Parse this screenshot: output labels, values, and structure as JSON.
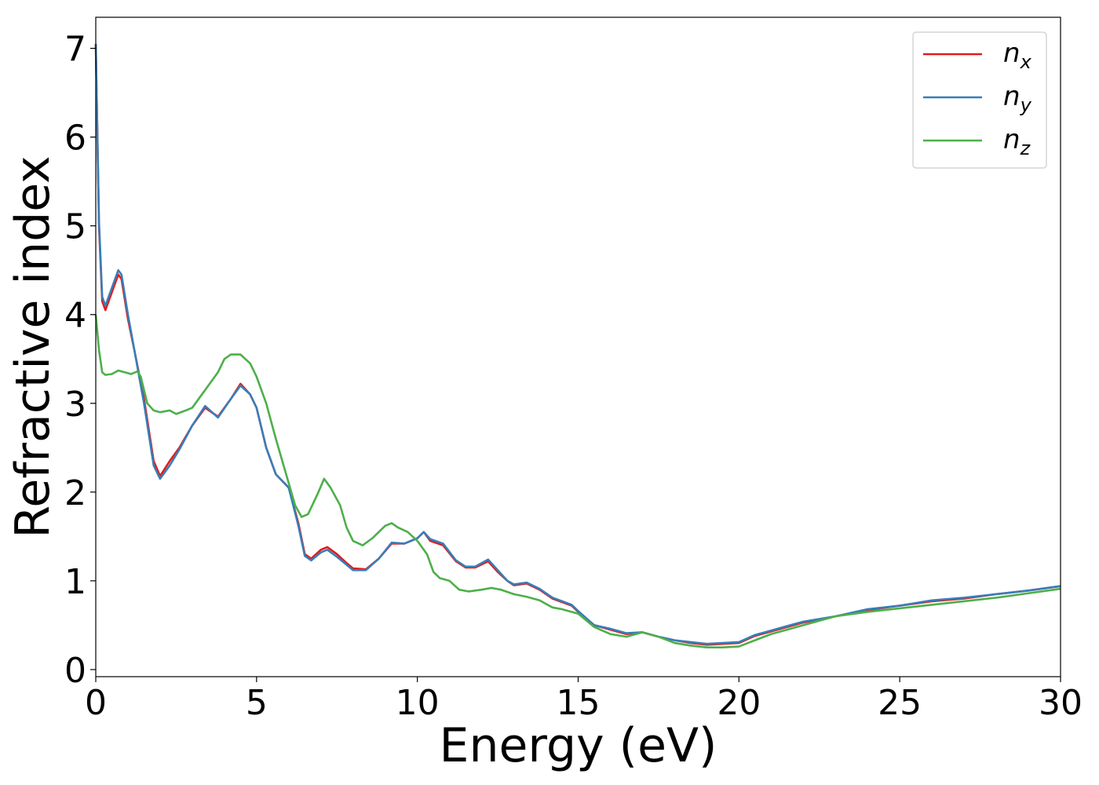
{
  "chart_data": {
    "type": "line",
    "xlabel": "Energy (eV)",
    "ylabel": "Refractive index",
    "xlim": [
      0,
      30
    ],
    "ylim": [
      -0.08,
      7.35
    ],
    "xticks": [
      0,
      5,
      10,
      15,
      20,
      25,
      30
    ],
    "yticks": [
      0,
      1,
      2,
      3,
      4,
      5,
      6,
      7
    ],
    "grid": false,
    "legend_position": "top-right",
    "series": [
      {
        "name": "n",
        "subscript": "x",
        "color": "#e41a1c",
        "x": [
          0,
          0.1,
          0.2,
          0.3,
          0.5,
          0.7,
          0.8,
          1.0,
          1.2,
          1.5,
          1.8,
          2.0,
          2.3,
          2.6,
          3.0,
          3.4,
          3.8,
          4.2,
          4.5,
          4.8,
          5.0,
          5.3,
          5.6,
          6.0,
          6.3,
          6.5,
          6.7,
          7.0,
          7.2,
          7.5,
          7.8,
          8.0,
          8.4,
          8.8,
          9.2,
          9.6,
          10.0,
          10.2,
          10.4,
          10.8,
          11.2,
          11.5,
          11.8,
          12.2,
          12.5,
          12.8,
          13.0,
          13.4,
          13.8,
          14.2,
          14.5,
          14.8,
          15.0,
          15.5,
          16.0,
          16.5,
          17.0,
          17.5,
          18.0,
          18.5,
          19.0,
          19.5,
          20.0,
          20.5,
          21.0,
          21.5,
          22.0,
          23.0,
          24.0,
          25.0,
          26.0,
          27.0,
          28.0,
          29.0,
          30.0
        ],
        "values": [
          7.05,
          5.0,
          4.15,
          4.05,
          4.25,
          4.45,
          4.4,
          3.95,
          3.6,
          3.05,
          2.35,
          2.18,
          2.35,
          2.5,
          2.75,
          2.95,
          2.85,
          3.05,
          3.22,
          3.1,
          2.95,
          2.5,
          2.2,
          2.05,
          1.65,
          1.3,
          1.25,
          1.35,
          1.38,
          1.3,
          1.2,
          1.14,
          1.13,
          1.25,
          1.42,
          1.42,
          1.48,
          1.55,
          1.45,
          1.4,
          1.22,
          1.15,
          1.15,
          1.22,
          1.1,
          1.0,
          0.95,
          0.97,
          0.9,
          0.8,
          0.76,
          0.72,
          0.65,
          0.5,
          0.45,
          0.4,
          0.42,
          0.37,
          0.33,
          0.3,
          0.28,
          0.29,
          0.3,
          0.38,
          0.43,
          0.48,
          0.53,
          0.6,
          0.67,
          0.72,
          0.77,
          0.8,
          0.85,
          0.89,
          0.94
        ]
      },
      {
        "name": "n",
        "subscript": "y",
        "color": "#377eb8",
        "x": [
          0,
          0.1,
          0.2,
          0.3,
          0.5,
          0.7,
          0.8,
          1.0,
          1.2,
          1.5,
          1.8,
          2.0,
          2.3,
          2.6,
          3.0,
          3.4,
          3.8,
          4.2,
          4.5,
          4.8,
          5.0,
          5.3,
          5.6,
          6.0,
          6.3,
          6.5,
          6.7,
          7.0,
          7.2,
          7.5,
          7.8,
          8.0,
          8.4,
          8.8,
          9.2,
          9.6,
          10.0,
          10.2,
          10.4,
          10.8,
          11.2,
          11.5,
          11.8,
          12.2,
          12.5,
          12.8,
          13.0,
          13.4,
          13.8,
          14.2,
          14.5,
          14.8,
          15.0,
          15.5,
          16.0,
          16.5,
          17.0,
          17.5,
          18.0,
          18.5,
          19.0,
          19.5,
          20.0,
          20.5,
          21.0,
          21.5,
          22.0,
          23.0,
          24.0,
          25.0,
          26.0,
          27.0,
          28.0,
          29.0,
          30.0
        ],
        "values": [
          7.05,
          5.05,
          4.2,
          4.1,
          4.3,
          4.5,
          4.45,
          4.0,
          3.6,
          3.0,
          2.3,
          2.15,
          2.3,
          2.48,
          2.75,
          2.97,
          2.84,
          3.05,
          3.2,
          3.1,
          2.95,
          2.5,
          2.2,
          2.05,
          1.62,
          1.28,
          1.23,
          1.32,
          1.35,
          1.27,
          1.18,
          1.12,
          1.12,
          1.25,
          1.43,
          1.42,
          1.48,
          1.55,
          1.47,
          1.42,
          1.23,
          1.16,
          1.16,
          1.24,
          1.12,
          1.0,
          0.96,
          0.98,
          0.91,
          0.81,
          0.77,
          0.73,
          0.66,
          0.5,
          0.46,
          0.41,
          0.42,
          0.37,
          0.33,
          0.31,
          0.29,
          0.3,
          0.31,
          0.39,
          0.44,
          0.49,
          0.54,
          0.6,
          0.68,
          0.72,
          0.78,
          0.81,
          0.85,
          0.89,
          0.94
        ]
      },
      {
        "name": "n",
        "subscript": "z",
        "color": "#4daf4a",
        "x": [
          0,
          0.1,
          0.2,
          0.3,
          0.5,
          0.7,
          0.9,
          1.1,
          1.3,
          1.4,
          1.6,
          1.8,
          2.0,
          2.3,
          2.5,
          2.8,
          3.0,
          3.4,
          3.8,
          4.0,
          4.2,
          4.5,
          4.8,
          5.0,
          5.3,
          5.6,
          6.0,
          6.2,
          6.4,
          6.6,
          6.9,
          7.1,
          7.3,
          7.6,
          7.8,
          8.0,
          8.3,
          8.6,
          9.0,
          9.2,
          9.4,
          9.7,
          10.0,
          10.3,
          10.5,
          10.7,
          11.0,
          11.3,
          11.6,
          12.0,
          12.3,
          12.6,
          13.0,
          13.4,
          13.8,
          14.2,
          14.5,
          14.8,
          15.0,
          15.5,
          16.0,
          16.5,
          17.0,
          17.5,
          18.0,
          18.5,
          19.0,
          19.5,
          20.0,
          20.5,
          21.0,
          21.5,
          22.0,
          23.0,
          24.0,
          25.0,
          26.0,
          27.0,
          28.0,
          29.0,
          30.0
        ],
        "values": [
          4.0,
          3.6,
          3.35,
          3.32,
          3.33,
          3.37,
          3.35,
          3.33,
          3.36,
          3.3,
          3.0,
          2.92,
          2.9,
          2.92,
          2.88,
          2.92,
          2.95,
          3.15,
          3.35,
          3.5,
          3.55,
          3.55,
          3.45,
          3.3,
          3.0,
          2.6,
          2.1,
          1.85,
          1.72,
          1.75,
          1.98,
          2.15,
          2.05,
          1.85,
          1.6,
          1.45,
          1.4,
          1.48,
          1.62,
          1.65,
          1.6,
          1.55,
          1.45,
          1.3,
          1.1,
          1.03,
          1.0,
          0.9,
          0.88,
          0.9,
          0.92,
          0.9,
          0.85,
          0.82,
          0.78,
          0.7,
          0.68,
          0.65,
          0.63,
          0.48,
          0.4,
          0.37,
          0.42,
          0.37,
          0.3,
          0.27,
          0.25,
          0.25,
          0.26,
          0.33,
          0.4,
          0.45,
          0.5,
          0.6,
          0.65,
          0.69,
          0.73,
          0.77,
          0.81,
          0.86,
          0.91
        ]
      }
    ]
  }
}
